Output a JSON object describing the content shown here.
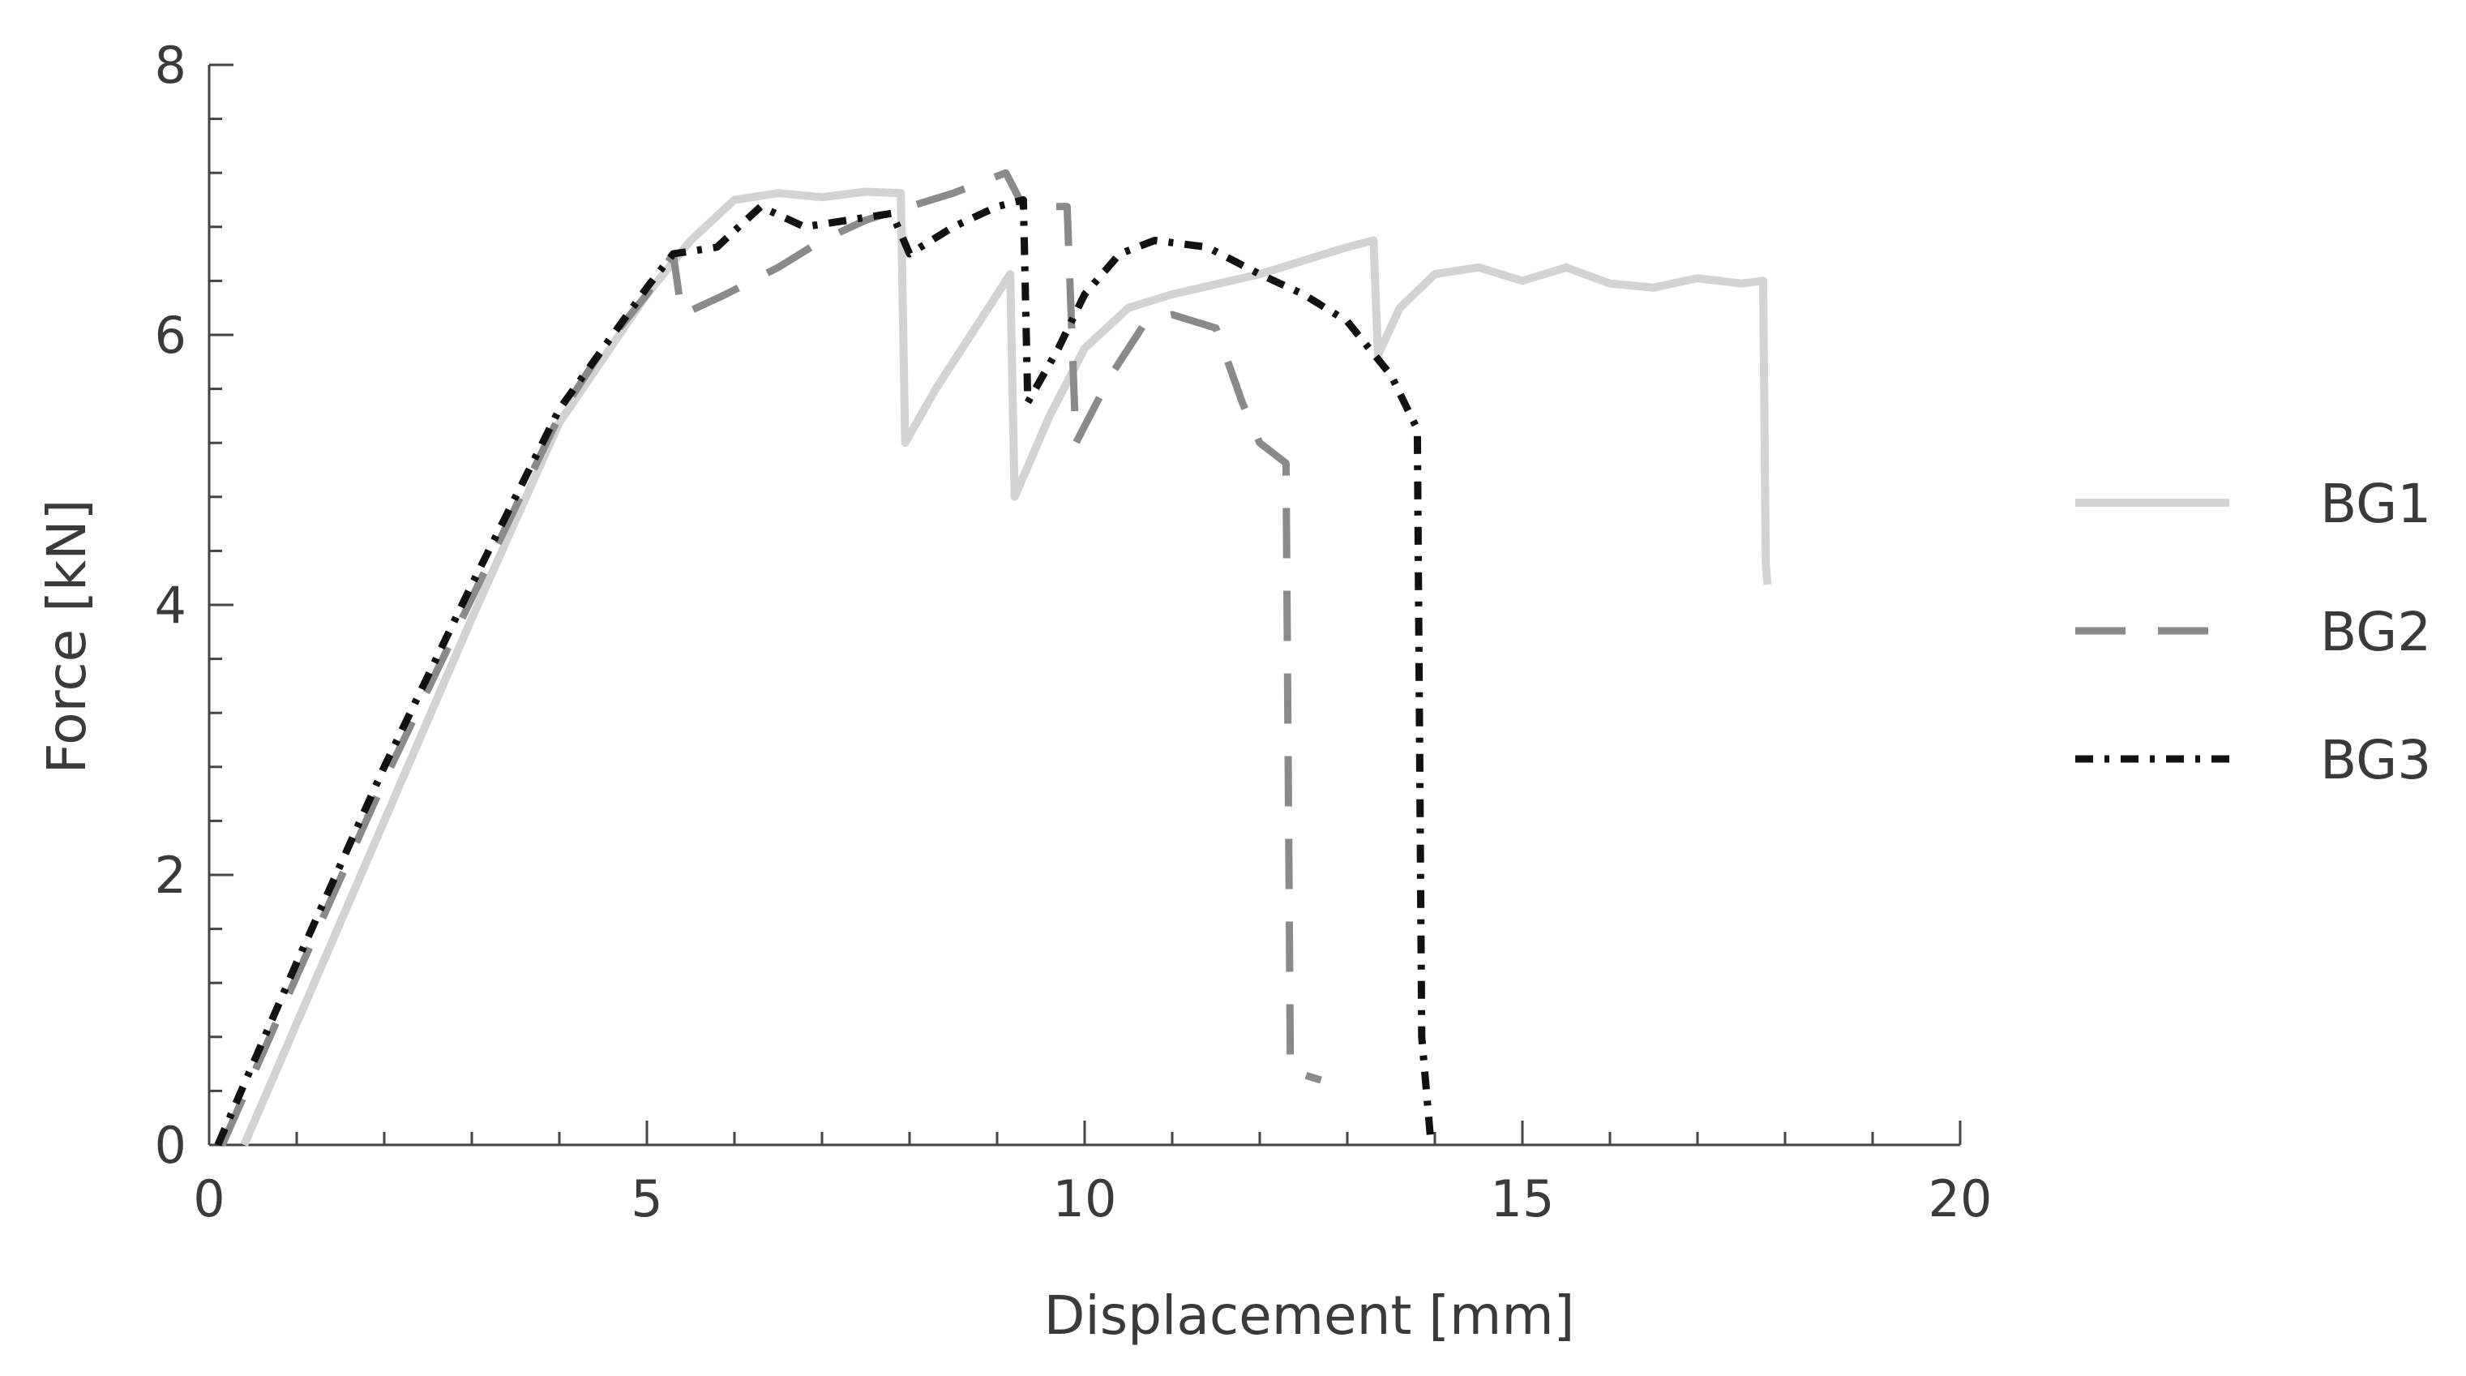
{
  "chart_data": {
    "type": "line",
    "xlabel": "Displacement [mm]",
    "ylabel": "Force [kN]",
    "xlim": [
      0,
      20
    ],
    "ylim": [
      0,
      8
    ],
    "xticks": [
      0,
      5,
      10,
      15,
      20
    ],
    "xtick_labels": [
      "0",
      "5",
      "10",
      "15",
      "20"
    ],
    "yticks": [
      0,
      2,
      4,
      6,
      8
    ],
    "ytick_labels": [
      "0",
      "2",
      "4",
      "6",
      "8"
    ],
    "grid": false,
    "legend_position": "right",
    "series": [
      {
        "name": "BG1",
        "color": "#d3d3d3",
        "style": "solid",
        "points": [
          [
            0.4,
            0
          ],
          [
            1.0,
            0.9
          ],
          [
            2.0,
            2.4
          ],
          [
            3.0,
            3.9
          ],
          [
            4.0,
            5.35
          ],
          [
            5.0,
            6.3
          ],
          [
            5.5,
            6.7
          ],
          [
            6.0,
            7.0
          ],
          [
            6.5,
            7.05
          ],
          [
            7.0,
            7.02
          ],
          [
            7.5,
            7.06
          ],
          [
            7.9,
            7.05
          ],
          [
            7.95,
            5.2
          ],
          [
            8.3,
            5.6
          ],
          [
            8.8,
            6.1
          ],
          [
            9.15,
            6.45
          ],
          [
            9.2,
            4.8
          ],
          [
            9.6,
            5.4
          ],
          [
            10.0,
            5.9
          ],
          [
            10.5,
            6.2
          ],
          [
            11.0,
            6.3
          ],
          [
            12.0,
            6.45
          ],
          [
            12.5,
            6.55
          ],
          [
            13.0,
            6.65
          ],
          [
            13.3,
            6.7
          ],
          [
            13.35,
            5.85
          ],
          [
            13.6,
            6.2
          ],
          [
            14.0,
            6.45
          ],
          [
            14.5,
            6.5
          ],
          [
            15.0,
            6.4
          ],
          [
            15.5,
            6.5
          ],
          [
            16.0,
            6.38
          ],
          [
            16.5,
            6.35
          ],
          [
            17.0,
            6.42
          ],
          [
            17.5,
            6.38
          ],
          [
            17.75,
            6.4
          ],
          [
            17.78,
            4.3
          ],
          [
            17.8,
            4.15
          ]
        ]
      },
      {
        "name": "BG2",
        "color": "#8a8a8a",
        "style": "dashed",
        "points": [
          [
            0.15,
            0
          ],
          [
            1.0,
            1.25
          ],
          [
            2.0,
            2.7
          ],
          [
            3.0,
            4.05
          ],
          [
            4.0,
            5.4
          ],
          [
            4.5,
            5.9
          ],
          [
            5.0,
            6.3
          ],
          [
            5.3,
            6.6
          ],
          [
            5.4,
            6.15
          ],
          [
            5.9,
            6.3
          ],
          [
            6.5,
            6.5
          ],
          [
            7.0,
            6.7
          ],
          [
            7.5,
            6.85
          ],
          [
            8.0,
            6.95
          ],
          [
            8.5,
            7.05
          ],
          [
            9.1,
            7.2
          ],
          [
            9.3,
            6.95
          ],
          [
            9.8,
            6.95
          ],
          [
            9.9,
            5.2
          ],
          [
            10.3,
            5.7
          ],
          [
            10.7,
            6.1
          ],
          [
            11.0,
            6.15
          ],
          [
            11.5,
            6.05
          ],
          [
            11.8,
            5.5
          ],
          [
            12.0,
            5.2
          ],
          [
            12.3,
            5.05
          ],
          [
            12.35,
            0.55
          ],
          [
            12.6,
            0.5
          ],
          [
            12.7,
            0.48
          ]
        ]
      },
      {
        "name": "BG3",
        "color": "#111111",
        "style": "dashdot",
        "points": [
          [
            0.1,
            0
          ],
          [
            1.0,
            1.35
          ],
          [
            2.0,
            2.8
          ],
          [
            3.0,
            4.15
          ],
          [
            4.0,
            5.45
          ],
          [
            4.5,
            5.9
          ],
          [
            5.0,
            6.35
          ],
          [
            5.3,
            6.6
          ],
          [
            5.8,
            6.65
          ],
          [
            6.3,
            6.95
          ],
          [
            6.8,
            6.8
          ],
          [
            7.3,
            6.85
          ],
          [
            7.8,
            6.9
          ],
          [
            8.0,
            6.6
          ],
          [
            8.5,
            6.8
          ],
          [
            9.0,
            6.95
          ],
          [
            9.3,
            7.0
          ],
          [
            9.35,
            5.5
          ],
          [
            9.7,
            5.9
          ],
          [
            10.0,
            6.3
          ],
          [
            10.4,
            6.6
          ],
          [
            10.8,
            6.7
          ],
          [
            11.4,
            6.65
          ],
          [
            12.0,
            6.45
          ],
          [
            12.5,
            6.3
          ],
          [
            13.0,
            6.1
          ],
          [
            13.5,
            5.7
          ],
          [
            13.8,
            5.3
          ],
          [
            13.85,
            0.8
          ],
          [
            13.95,
            0.05
          ]
        ]
      }
    ]
  }
}
